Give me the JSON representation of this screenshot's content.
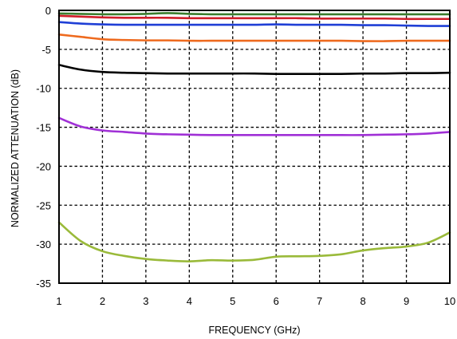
{
  "chart_data": {
    "type": "line",
    "title": "",
    "xlabel": "FREQUENCY (GHz)",
    "ylabel": "NORMALIZED ATTENUATION (dB)",
    "xlim": [
      1,
      10
    ],
    "ylim": [
      -35,
      0
    ],
    "x_ticks": [
      1,
      2,
      3,
      4,
      5,
      6,
      7,
      8,
      9,
      10
    ],
    "y_ticks": [
      0,
      -5,
      -10,
      -15,
      -20,
      -25,
      -30,
      -35
    ],
    "grid": true,
    "x": [
      1,
      1.5,
      2,
      2.5,
      3,
      3.5,
      4,
      4.5,
      5,
      5.5,
      6,
      6.5,
      7,
      7.5,
      8,
      8.5,
      9,
      9.5,
      10
    ],
    "series": [
      {
        "color": "#3a7d2c",
        "values": [
          -0.4,
          -0.45,
          -0.5,
          -0.5,
          -0.45,
          -0.35,
          -0.45,
          -0.5,
          -0.5,
          -0.5,
          -0.5,
          -0.5,
          -0.5,
          -0.5,
          -0.5,
          -0.5,
          -0.5,
          -0.5,
          -0.5
        ]
      },
      {
        "color": "#d11f2a",
        "values": [
          -0.7,
          -0.8,
          -0.9,
          -0.95,
          -0.95,
          -0.95,
          -1.0,
          -1.0,
          -1.0,
          -1.0,
          -1.0,
          -1.0,
          -1.05,
          -1.05,
          -1.05,
          -1.05,
          -1.1,
          -1.1,
          -1.1
        ]
      },
      {
        "color": "#1f3fd6",
        "values": [
          -1.5,
          -1.7,
          -1.8,
          -1.85,
          -1.85,
          -1.85,
          -1.85,
          -1.85,
          -1.85,
          -1.85,
          -1.8,
          -1.85,
          -1.85,
          -1.85,
          -1.9,
          -1.9,
          -1.95,
          -2.0,
          -2.0
        ]
      },
      {
        "color": "#ee6a1e",
        "values": [
          -3.1,
          -3.4,
          -3.7,
          -3.8,
          -3.85,
          -3.85,
          -3.9,
          -3.9,
          -3.9,
          -3.9,
          -3.9,
          -3.9,
          -3.9,
          -3.9,
          -3.95,
          -3.95,
          -3.9,
          -3.9,
          -3.9
        ]
      },
      {
        "color": "#000000",
        "values": [
          -7.0,
          -7.6,
          -7.9,
          -8.0,
          -8.05,
          -8.1,
          -8.1,
          -8.1,
          -8.1,
          -8.1,
          -8.15,
          -8.15,
          -8.15,
          -8.15,
          -8.1,
          -8.1,
          -8.05,
          -8.05,
          -8.0
        ]
      },
      {
        "color": "#a030d6",
        "values": [
          -13.8,
          -14.9,
          -15.4,
          -15.6,
          -15.8,
          -15.9,
          -15.95,
          -16.0,
          -16.0,
          -16.0,
          -16.0,
          -16.0,
          -16.0,
          -16.0,
          -16.0,
          -15.95,
          -15.9,
          -15.8,
          -15.6
        ]
      },
      {
        "color": "#9aba3a",
        "values": [
          -27.2,
          -29.6,
          -30.9,
          -31.5,
          -31.9,
          -32.1,
          -32.2,
          -32.05,
          -32.1,
          -32.0,
          -31.6,
          -31.55,
          -31.5,
          -31.3,
          -30.8,
          -30.5,
          -30.3,
          -29.8,
          -28.5
        ]
      }
    ]
  }
}
